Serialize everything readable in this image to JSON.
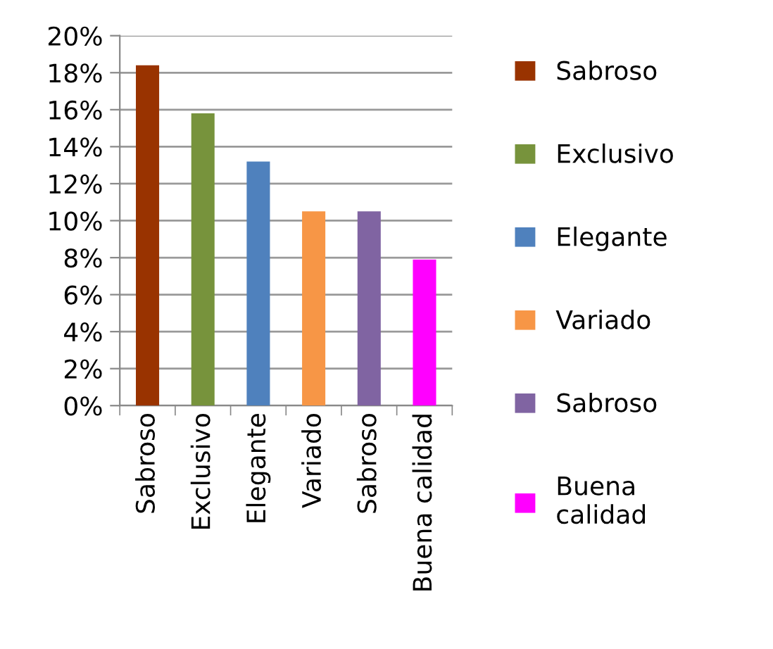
{
  "chart_data": {
    "type": "bar",
    "categories": [
      "Sabroso",
      "Exclusivo",
      "Elegante",
      "Variado",
      "Sabroso",
      "Buena calidad"
    ],
    "series": [
      {
        "name": "Sabroso",
        "color": "#993300",
        "values": [
          18.4,
          null,
          null,
          null,
          null,
          null
        ]
      },
      {
        "name": "Exclusivo",
        "color": "#77933c",
        "values": [
          null,
          15.8,
          null,
          null,
          null,
          null
        ]
      },
      {
        "name": "Elegante",
        "color": "#4f81bd",
        "values": [
          null,
          null,
          13.2,
          null,
          null,
          null
        ]
      },
      {
        "name": "Variado",
        "color": "#f79646",
        "values": [
          null,
          null,
          null,
          10.5,
          null,
          null
        ]
      },
      {
        "name": "Sabroso",
        "color": "#8064a2",
        "values": [
          null,
          null,
          null,
          null,
          10.5,
          null
        ]
      },
      {
        "name": "Buena calidad",
        "color": "#ff00ff",
        "values": [
          null,
          null,
          null,
          null,
          null,
          7.9
        ]
      }
    ],
    "ylim": [
      0,
      20
    ],
    "yticks": [
      {
        "value": 0,
        "label": "0%"
      },
      {
        "value": 2,
        "label": "2%"
      },
      {
        "value": 4,
        "label": "4%"
      },
      {
        "value": 6,
        "label": "6%"
      },
      {
        "value": 8,
        "label": "8%"
      },
      {
        "value": 10,
        "label": "10%"
      },
      {
        "value": 12,
        "label": "12%"
      },
      {
        "value": 14,
        "label": "14%"
      },
      {
        "value": 16,
        "label": "16%"
      },
      {
        "value": 18,
        "label": "18%"
      },
      {
        "value": 20,
        "label": "20%"
      }
    ],
    "grid": "y",
    "legend": "right"
  }
}
